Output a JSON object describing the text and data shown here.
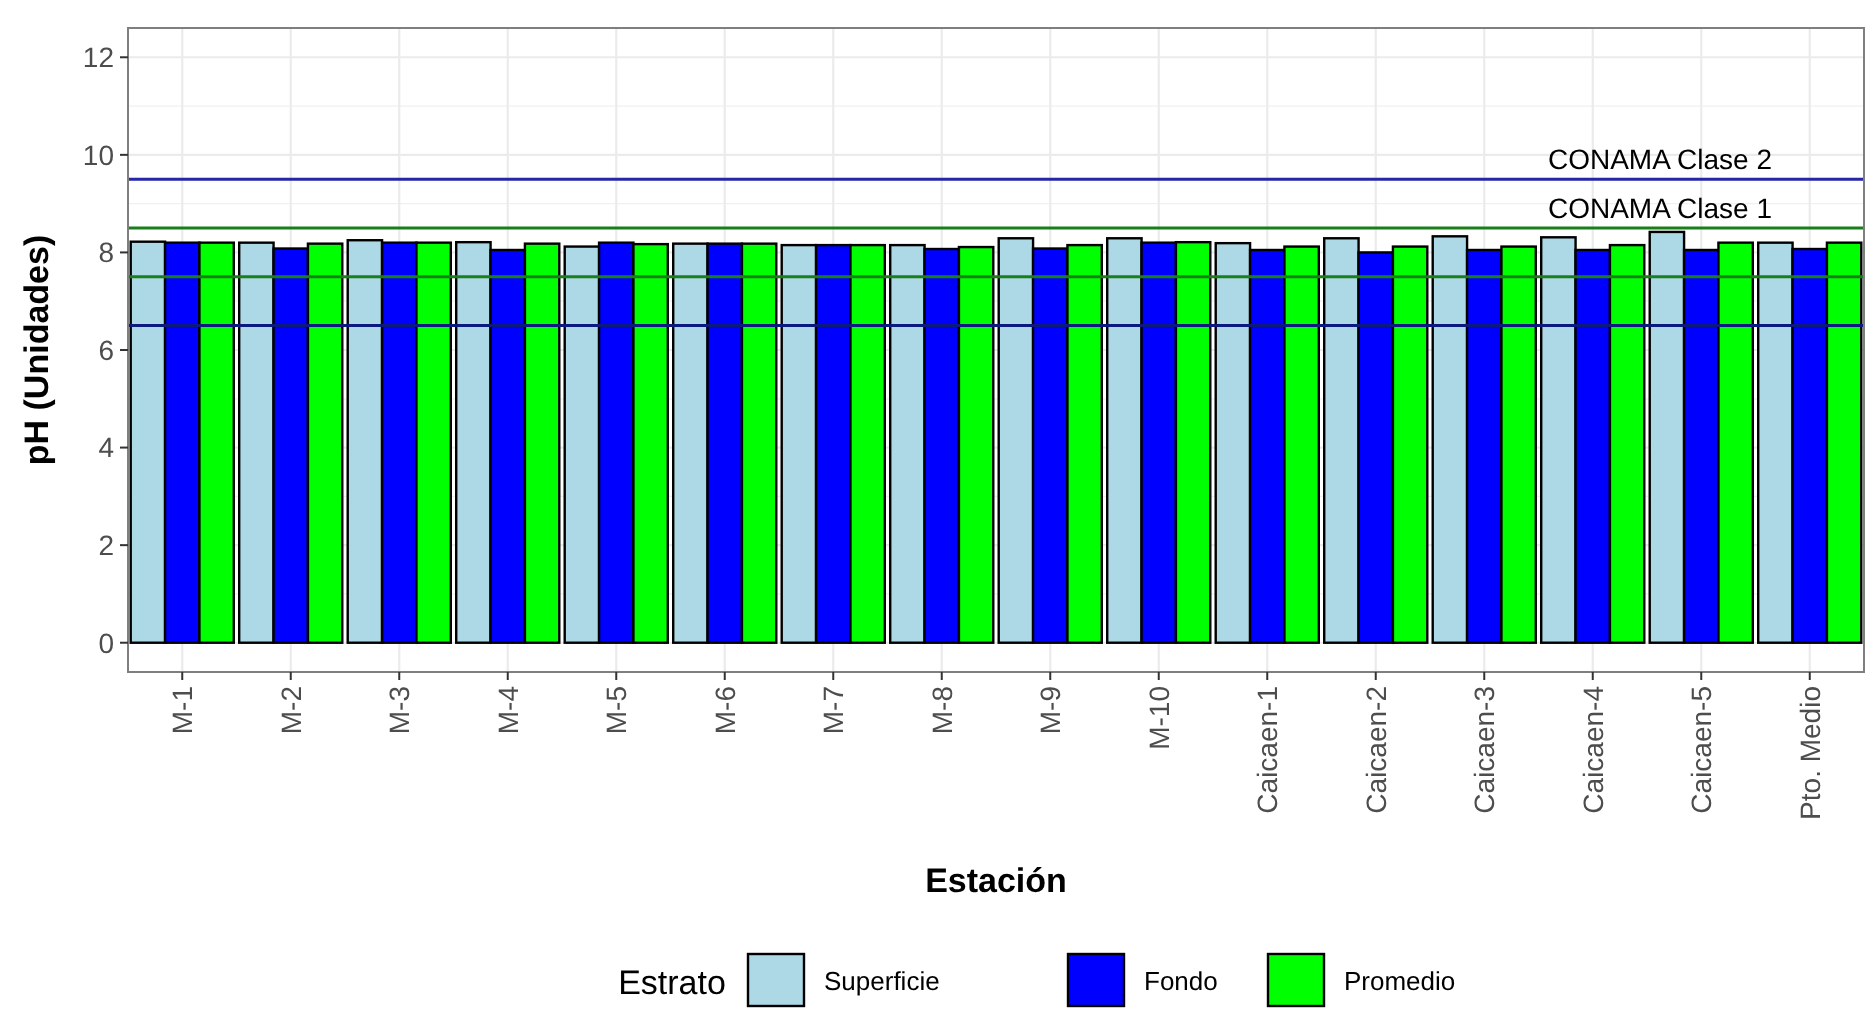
{
  "chart_data": {
    "type": "bar",
    "xlabel": "Estación",
    "ylabel": "pH (Unidades)",
    "legend_title": "Estrato",
    "legend": "bottom",
    "grid": true,
    "categories": [
      "M-1",
      "M-2",
      "M-3",
      "M-4",
      "M-5",
      "M-6",
      "M-7",
      "M-8",
      "M-9",
      "M-10",
      "Caicaen-1",
      "Caicaen-2",
      "Caicaen-3",
      "Caicaen-4",
      "Caicaen-5",
      "Pto. Medio"
    ],
    "series": [
      {
        "name": "Superficie",
        "color": "#add8e6",
        "values": [
          8.22,
          8.2,
          8.25,
          8.21,
          8.12,
          8.18,
          8.15,
          8.15,
          8.29,
          8.29,
          8.19,
          8.29,
          8.33,
          8.31,
          8.42,
          8.2
        ]
      },
      {
        "name": "Fondo",
        "color": "#0000ff",
        "values": [
          8.2,
          8.08,
          8.2,
          8.05,
          8.2,
          8.18,
          8.15,
          8.07,
          8.08,
          8.2,
          8.05,
          8.0,
          8.05,
          8.05,
          8.05,
          8.07
        ]
      },
      {
        "name": "Promedio",
        "color": "#00ff00",
        "values": [
          8.2,
          8.18,
          8.2,
          8.18,
          8.17,
          8.18,
          8.15,
          8.11,
          8.15,
          8.21,
          8.12,
          8.12,
          8.12,
          8.15,
          8.2,
          8.2
        ]
      }
    ],
    "ylim": [
      -0.6,
      12.6
    ],
    "yticks": [
      0,
      2,
      4,
      6,
      8,
      10,
      12
    ],
    "ref_lines": [
      {
        "axis": "y",
        "value": 9.5,
        "label": "CONAMA Clase 2",
        "color": "#2626a6"
      },
      {
        "axis": "y",
        "value": 8.5,
        "label": "CONAMA Clase 1",
        "color": "#1a7f1a"
      },
      {
        "axis": "y",
        "value": 7.5,
        "color": "#1a7f1a"
      },
      {
        "axis": "y",
        "value": 6.5,
        "color": "#0c1a80"
      }
    ]
  }
}
